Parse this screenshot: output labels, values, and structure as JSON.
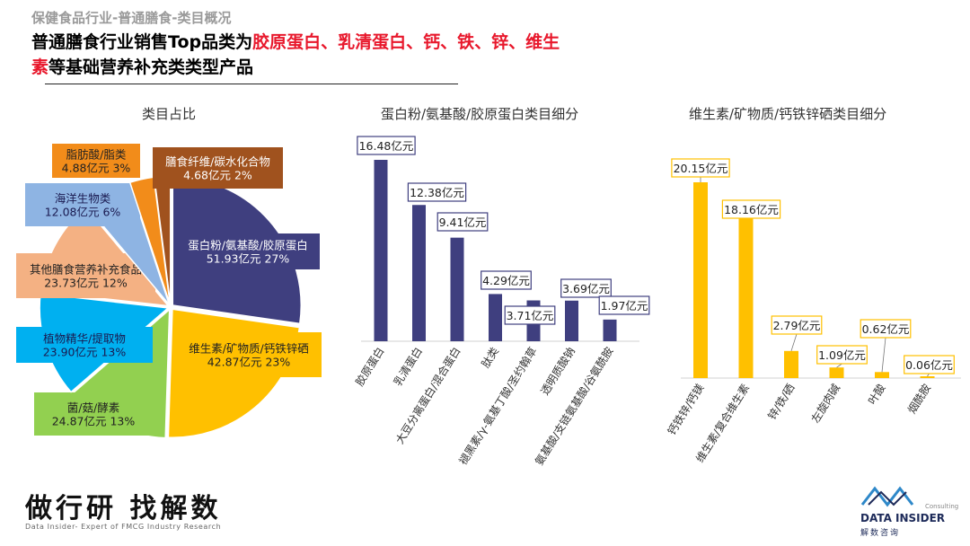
{
  "header": {
    "kicker": "保健食品行业-普通膳食-类目概况",
    "headline_1": "普通膳食行业销售Top品类为",
    "headline_hl_1": "胶原蛋白、乳清蛋白、钙、铁、锌、维生",
    "headline_hl_2": "素",
    "headline_2": "等基础营养补充类类型产品"
  },
  "footer": {
    "slogan": "做行研 找解数",
    "tagline": "Data Insider- Expert of FMCG Industry Research",
    "brand_name": "DATA INSIDER",
    "brand_sub": "解数咨询",
    "brand_consult": "Consulting"
  },
  "chart_data": [
    {
      "type": "pie",
      "title": "类目占比",
      "slices": [
        {
          "name": "蛋白粉/氨基酸/胶原蛋白",
          "amount": "51.93亿元",
          "pct": 27,
          "color": "#3f3f7f"
        },
        {
          "name": "维生素/矿物质/钙铁锌硒",
          "amount": "42.87亿元",
          "pct": 23,
          "color": "#ffc000"
        },
        {
          "name": "菌/菇/酵素",
          "amount": "24.87亿元",
          "pct": 13,
          "color": "#92d050"
        },
        {
          "name": "植物精华/提取物",
          "amount": "23.90亿元",
          "pct": 13,
          "color": "#00b0f0"
        },
        {
          "name": "其他膳食营养补充食品",
          "amount": "23.73亿元",
          "pct": 12,
          "color": "#f4b183"
        },
        {
          "name": "海洋生物类",
          "amount": "12.08亿元",
          "pct": 6,
          "color": "#8eb4e3"
        },
        {
          "name": "脂肪酸/脂类",
          "amount": "4.88亿元",
          "pct": 3,
          "color": "#f28c1a"
        },
        {
          "name": "膳食纤维/碳水化合物",
          "amount": "4.68亿元",
          "pct": 2,
          "color": "#a0521e"
        }
      ]
    },
    {
      "type": "bar",
      "title": "蛋白粉/氨基酸/胶原蛋白类目细分",
      "color": "#3f3f7f",
      "categories": [
        "胶原蛋白",
        "乳清蛋白",
        "大豆分离蛋白/混合蛋白",
        "肽类",
        "褪黑素/γ-氨基丁酸/圣约翰草",
        "透明质酸钠",
        "氨基酸/支链氨基酸/谷氨酰胺"
      ],
      "values": [
        16.48,
        12.38,
        9.41,
        4.29,
        3.71,
        3.69,
        1.97
      ],
      "labels": [
        "16.48亿元",
        "12.38亿元",
        "9.41亿元",
        "4.29亿元",
        "3.71亿元",
        "3.69亿元",
        "1.97亿元"
      ]
    },
    {
      "type": "bar",
      "title": "维生素/矿物质/钙铁锌硒类目细分",
      "color": "#ffc000",
      "categories": [
        "钙铁锌/钙镁",
        "维生素/复合维生素",
        "锌/铁/硒",
        "左旋肉碱",
        "叶酸",
        "烟酰胺"
      ],
      "values": [
        20.15,
        18.16,
        2.79,
        1.09,
        0.62,
        0.06
      ],
      "labels": [
        "20.15亿元",
        "18.16亿元",
        "2.79亿元",
        "1.09亿元",
        "0.62亿元",
        "0.06亿元"
      ]
    }
  ]
}
